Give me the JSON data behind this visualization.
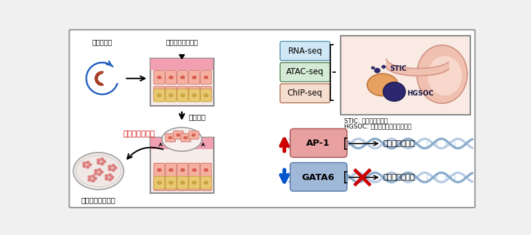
{
  "bg_color": "#f0f0f0",
  "border_color": "#888888",
  "rna_seq_label": "RNA-seq",
  "atac_seq_label": "ATAC-seq",
  "chip_seq_label": "ChIP-seq",
  "stic_label": "STIC",
  "hgsoc_label": "HGSOC",
  "stic_desc": "STIC: 卵管上皮内がん",
  "hgsoc_desc": "HGSOC: 高異型度漿液性卵巣がん",
  "ap1_label": "AP-1",
  "gata6_label": "GATA6",
  "marker1": "間葉系マーカー",
  "marker2": "上皮系マーカー",
  "step1_label": "卵管采摘出",
  "step2_label": "卵管分泌上皮細胞",
  "step3_label": "単離培養",
  "step4_label": "がん遺伝子導入",
  "step5_label": "発がんモデル細胞",
  "rna_box_color": "#d0e8f5",
  "atac_box_color": "#d5ead5",
  "chip_box_color": "#f5ddd0",
  "ap1_color": "#e8a0a0",
  "gata6_color": "#a0b8d8",
  "dna_color_light": "#b8cce4",
  "dna_color_dark": "#8aaccc"
}
